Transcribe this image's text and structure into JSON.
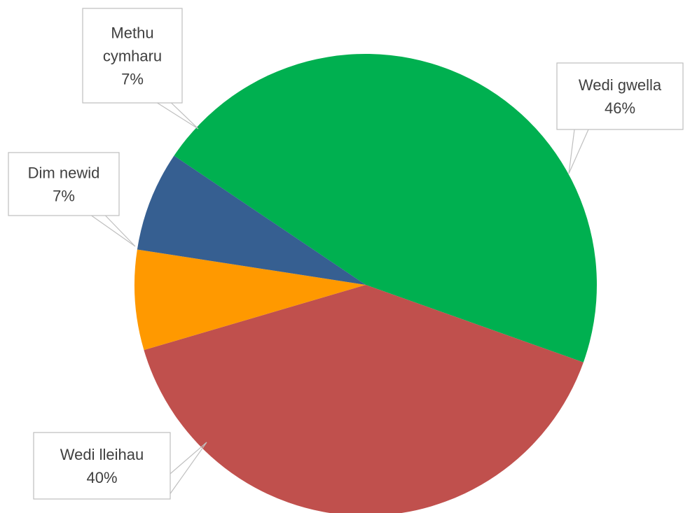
{
  "chart_data": {
    "type": "pie",
    "title": "",
    "slices": [
      {
        "label": "Wedi gwella",
        "value": 46,
        "display": "46%",
        "color": "#00b050"
      },
      {
        "label": "Wedi lleihau",
        "value": 40,
        "display": "40%",
        "color": "#c0504d"
      },
      {
        "label": "Dim newid",
        "value": 7,
        "display": "7%",
        "color": "#ff9900"
      },
      {
        "label": "Methu cymharu",
        "label_lines": [
          "Methu",
          "cymharu"
        ],
        "value": 7,
        "display": "7%",
        "color": "#365f91"
      }
    ],
    "legend": "none",
    "data_labels": "callouts"
  }
}
